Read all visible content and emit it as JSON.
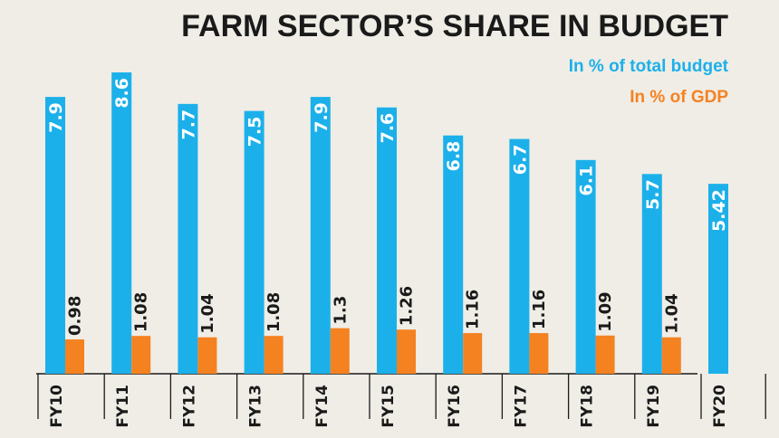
{
  "chart_data": {
    "type": "bar",
    "title": "FARM SECTOR’S SHARE IN BUDGET",
    "categories": [
      "FY10",
      "FY11",
      "FY12",
      "FY13",
      "FY14",
      "FY15",
      "FY16",
      "FY17",
      "FY18",
      "FY19",
      "FY20"
    ],
    "series": [
      {
        "name": "In % of total budget",
        "color": "#1cb0ea",
        "values": [
          7.9,
          8.6,
          7.7,
          7.5,
          7.9,
          7.6,
          6.8,
          6.7,
          6.1,
          5.7,
          5.42
        ],
        "labels": [
          "7.9",
          "8.6",
          "7.7",
          "7.5",
          "7.9",
          "7.6",
          "6.8",
          "6.7",
          "6.1",
          "5.7",
          "5.42"
        ]
      },
      {
        "name": "In % of GDP",
        "color": "#f58220",
        "values": [
          0.98,
          1.08,
          1.04,
          1.08,
          1.3,
          1.26,
          1.16,
          1.16,
          1.09,
          1.04,
          null
        ],
        "labels": [
          "0.98",
          "1.08",
          "1.04",
          "1.08",
          "1.3",
          "1.26",
          "1.16",
          "1.16",
          "1.09",
          "1.04",
          ""
        ]
      }
    ],
    "ylim": [
      0,
      8.6
    ],
    "xlabel": "",
    "ylabel": "",
    "legend": "top-right",
    "grid": false
  }
}
